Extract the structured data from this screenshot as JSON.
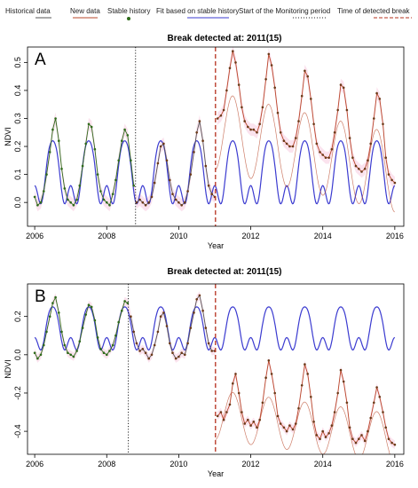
{
  "legend": {
    "items": [
      {
        "label": "Historical data",
        "kind": "line",
        "color": "#555555"
      },
      {
        "label": "New data",
        "kind": "line",
        "color": "#b9472a"
      },
      {
        "label": "Stable history",
        "kind": "dot",
        "color": "#2e6b1a"
      },
      {
        "label": "Fit based on stable history",
        "kind": "line",
        "color": "#3b3bd0"
      },
      {
        "label": "Start of the Monitoring period",
        "kind": "dotted",
        "color": "#222222"
      },
      {
        "label": "Time of detected break",
        "kind": "dashed",
        "color": "#b5301e"
      }
    ]
  },
  "colors": {
    "fit": "#3b3bd0",
    "new_data": "#b9472a",
    "historical": "#555555",
    "stable_point": "#2e6b1a",
    "point": "#6b3a18",
    "band": "#fbe3ee",
    "break_line": "#b5301e",
    "monitor_line": "#222222"
  },
  "chart_data": [
    {
      "type": "line",
      "panel_letter": "A",
      "title": "Break detected at: 2011(15)",
      "xlabel": "Year",
      "ylabel": "NDVI",
      "xlim": [
        2005.8,
        2016.25
      ],
      "ylim": [
        -0.085,
        0.555
      ],
      "xticks": [
        2006,
        2008,
        2010,
        2012,
        2014,
        2016
      ],
      "yticks": [
        0.0,
        0.1,
        0.2,
        0.3,
        0.4,
        0.5
      ],
      "monitoring_start": 2008.8,
      "break_time": 2011.02,
      "fit_params": {
        "mean": 0.09,
        "a1": -0.1,
        "a2": 0.05,
        "a3": 0.02
      },
      "new_data_params": {
        "level": 0.255,
        "amplitude": 0.14,
        "trend": -0.03
      },
      "series": [
        {
          "name": "Stable history",
          "x": [
            2006.0,
            2006.08,
            2006.17,
            2006.25,
            2006.33,
            2006.42,
            2006.5,
            2006.58,
            2006.67,
            2006.75,
            2006.83,
            2006.92,
            2007.0,
            2007.08,
            2007.17,
            2007.25,
            2007.33,
            2007.42,
            2007.5,
            2007.58,
            2007.67,
            2007.75,
            2007.83,
            2007.92,
            2008.0,
            2008.08,
            2008.17,
            2008.25,
            2008.33,
            2008.42,
            2008.5,
            2008.58,
            2008.67,
            2008.75
          ],
          "y": [
            0.02,
            -0.01,
            0.0,
            0.04,
            0.1,
            0.18,
            0.26,
            0.3,
            0.22,
            0.12,
            0.05,
            0.01,
            0.0,
            -0.01,
            0.01,
            0.06,
            0.13,
            0.21,
            0.28,
            0.27,
            0.19,
            0.1,
            0.04,
            0.01,
            0.0,
            -0.01,
            0.03,
            0.08,
            0.15,
            0.22,
            0.26,
            0.24,
            0.15,
            0.06
          ]
        },
        {
          "name": "Historical data",
          "x": [
            2008.83,
            2008.92,
            2009.0,
            2009.08,
            2009.17,
            2009.25,
            2009.33,
            2009.42,
            2009.5,
            2009.58,
            2009.67,
            2009.75,
            2009.83,
            2009.92,
            2010.0,
            2010.08,
            2010.17,
            2010.25,
            2010.33,
            2010.42,
            2010.5,
            2010.58,
            2010.67,
            2010.75,
            2010.83,
            2010.92,
            2011.0
          ],
          "y": [
            0.0,
            0.01,
            0.0,
            -0.01,
            0.0,
            0.02,
            0.07,
            0.14,
            0.2,
            0.21,
            0.15,
            0.08,
            0.03,
            0.01,
            0.0,
            -0.01,
            0.0,
            0.04,
            0.1,
            0.18,
            0.25,
            0.29,
            0.22,
            0.13,
            0.06,
            0.03,
            0.02
          ]
        },
        {
          "name": "New data",
          "x": [
            2011.08,
            2011.17,
            2011.25,
            2011.33,
            2011.42,
            2011.5,
            2011.58,
            2011.67,
            2011.75,
            2011.83,
            2011.92,
            2012.0,
            2012.08,
            2012.17,
            2012.25,
            2012.33,
            2012.42,
            2012.5,
            2012.58,
            2012.67,
            2012.75,
            2012.83,
            2012.92,
            2013.0,
            2013.08,
            2013.17,
            2013.25,
            2013.33,
            2013.42,
            2013.5,
            2013.58,
            2013.67,
            2013.75,
            2013.83,
            2013.92,
            2014.0,
            2014.08,
            2014.17,
            2014.25,
            2014.33,
            2014.42,
            2014.5,
            2014.58,
            2014.67,
            2014.75,
            2014.83,
            2014.92,
            2015.0,
            2015.08,
            2015.17,
            2015.25,
            2015.33,
            2015.42,
            2015.5,
            2015.58,
            2015.67,
            2015.75,
            2015.83,
            2015.92,
            2016.0
          ],
          "y": [
            0.3,
            0.31,
            0.33,
            0.4,
            0.48,
            0.54,
            0.5,
            0.42,
            0.34,
            0.29,
            0.27,
            0.26,
            0.26,
            0.25,
            0.28,
            0.34,
            0.44,
            0.53,
            0.49,
            0.41,
            0.32,
            0.25,
            0.22,
            0.21,
            0.2,
            0.2,
            0.23,
            0.29,
            0.38,
            0.47,
            0.45,
            0.37,
            0.28,
            0.21,
            0.18,
            0.17,
            0.16,
            0.16,
            0.19,
            0.25,
            0.33,
            0.42,
            0.41,
            0.33,
            0.23,
            0.16,
            0.13,
            0.12,
            0.11,
            0.12,
            0.15,
            0.21,
            0.3,
            0.39,
            0.37,
            0.28,
            0.16,
            0.1,
            0.08,
            0.07
          ]
        }
      ]
    },
    {
      "type": "line",
      "panel_letter": "B",
      "title": "Break detected at: 2011(15)",
      "xlabel": "Year",
      "ylabel": "NDVI",
      "xlim": [
        2005.8,
        2016.25
      ],
      "ylim": [
        -0.52,
        0.37
      ],
      "xticks": [
        2006,
        2008,
        2010,
        2012,
        2014,
        2016
      ],
      "yticks": [
        -0.4,
        -0.2,
        0.0,
        0.2
      ],
      "monitoring_start": 2008.6,
      "break_time": 2011.02,
      "fit_params": {
        "mean": 0.12,
        "a1": -0.1,
        "a2": 0.05,
        "a3": 0.02
      },
      "new_data_params": {
        "level": -0.315,
        "amplitude": 0.13,
        "trend": -0.025
      },
      "series": [
        {
          "name": "Stable history",
          "x": [
            2006.0,
            2006.08,
            2006.17,
            2006.25,
            2006.33,
            2006.42,
            2006.5,
            2006.58,
            2006.67,
            2006.75,
            2006.83,
            2006.92,
            2007.0,
            2007.08,
            2007.17,
            2007.25,
            2007.33,
            2007.42,
            2007.5,
            2007.58,
            2007.67,
            2007.75,
            2007.83,
            2007.92,
            2008.0,
            2008.08,
            2008.17,
            2008.25,
            2008.33,
            2008.42,
            2008.5,
            2008.58
          ],
          "y": [
            0.01,
            -0.02,
            0.0,
            0.05,
            0.12,
            0.2,
            0.27,
            0.3,
            0.22,
            0.12,
            0.05,
            0.01,
            0.0,
            -0.01,
            0.02,
            0.07,
            0.14,
            0.21,
            0.26,
            0.25,
            0.18,
            0.09,
            0.03,
            0.01,
            0.0,
            0.02,
            0.05,
            0.1,
            0.17,
            0.23,
            0.28,
            0.27
          ]
        },
        {
          "name": "Historical data",
          "x": [
            2008.67,
            2008.75,
            2008.83,
            2008.92,
            2009.0,
            2009.08,
            2009.17,
            2009.25,
            2009.33,
            2009.42,
            2009.5,
            2009.58,
            2009.67,
            2009.75,
            2009.83,
            2009.92,
            2010.0,
            2010.08,
            2010.17,
            2010.25,
            2010.33,
            2010.42,
            2010.5,
            2010.58,
            2010.67,
            2010.75,
            2010.83,
            2010.92,
            2011.0
          ],
          "y": [
            0.2,
            0.12,
            0.06,
            0.02,
            0.03,
            0.01,
            -0.02,
            0.0,
            0.05,
            0.12,
            0.2,
            0.22,
            0.15,
            0.06,
            0.01,
            -0.02,
            -0.01,
            0.01,
            0.0,
            0.06,
            0.14,
            0.22,
            0.29,
            0.31,
            0.23,
            0.14,
            0.06,
            0.02,
            0.02
          ]
        },
        {
          "name": "New data",
          "x": [
            2011.08,
            2011.17,
            2011.25,
            2011.33,
            2011.42,
            2011.5,
            2011.58,
            2011.67,
            2011.75,
            2011.83,
            2011.92,
            2012.0,
            2012.08,
            2012.17,
            2012.25,
            2012.33,
            2012.42,
            2012.5,
            2012.58,
            2012.67,
            2012.75,
            2012.83,
            2012.92,
            2013.0,
            2013.08,
            2013.17,
            2013.25,
            2013.33,
            2013.42,
            2013.5,
            2013.58,
            2013.67,
            2013.75,
            2013.83,
            2013.92,
            2014.0,
            2014.08,
            2014.17,
            2014.25,
            2014.33,
            2014.42,
            2014.5,
            2014.58,
            2014.67,
            2014.75,
            2014.83,
            2014.92,
            2015.0,
            2015.08,
            2015.17,
            2015.25,
            2015.33,
            2015.42,
            2015.5,
            2015.58,
            2015.67,
            2015.75,
            2015.83,
            2015.92,
            2016.0
          ],
          "y": [
            -0.32,
            -0.3,
            -0.34,
            -0.3,
            -0.26,
            -0.15,
            -0.1,
            -0.2,
            -0.3,
            -0.36,
            -0.34,
            -0.37,
            -0.35,
            -0.38,
            -0.34,
            -0.25,
            -0.12,
            -0.03,
            -0.1,
            -0.2,
            -0.32,
            -0.36,
            -0.38,
            -0.4,
            -0.37,
            -0.39,
            -0.36,
            -0.28,
            -0.16,
            -0.05,
            -0.1,
            -0.22,
            -0.35,
            -0.42,
            -0.44,
            -0.4,
            -0.43,
            -0.41,
            -0.37,
            -0.3,
            -0.2,
            -0.08,
            -0.14,
            -0.25,
            -0.38,
            -0.44,
            -0.46,
            -0.44,
            -0.42,
            -0.45,
            -0.4,
            -0.33,
            -0.25,
            -0.17,
            -0.22,
            -0.3,
            -0.38,
            -0.44,
            -0.46,
            -0.47
          ]
        }
      ]
    }
  ]
}
